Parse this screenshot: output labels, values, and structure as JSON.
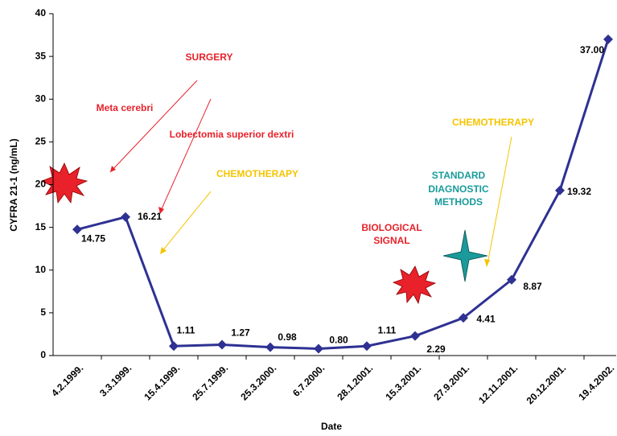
{
  "chart_data": {
    "type": "line",
    "y_label": "CYFRA 21-1 (ng/mL)",
    "x_label": "Date",
    "categories": [
      "4.2.1999.",
      "3.3.1999.",
      "15.4.1999.",
      "25.7.1999.",
      "25.3.2000.",
      "6.7.2000.",
      "28.1.2001.",
      "15.3.2001.",
      "27.9.2001.",
      "12.11.2001.",
      "20.12.2001.",
      "19.4.2002."
    ],
    "series": [
      {
        "color": "#2e3192",
        "values": [
          14.75,
          16.21,
          1.11,
          1.27,
          0.98,
          0.8,
          1.11,
          2.29,
          4.41,
          8.87,
          19.32,
          37.0
        ],
        "value_labels": [
          "14.75",
          "16.21",
          "1.11",
          "1.27",
          "0.98",
          "0.80",
          "1.11",
          "2.29",
          "4.41",
          "8.87",
          "19.32",
          "37.00"
        ]
      }
    ],
    "ylim": [
      0,
      40
    ],
    "yticks": [
      0,
      5,
      10,
      15,
      20,
      25,
      30,
      35,
      40
    ],
    "annotations": [
      "SURGERY",
      "Meta cerebri",
      "Lobectomia superior dextri",
      "CHEMOTHERAPY",
      "CHEMOTHERAPY",
      "STANDARD",
      "DIAGNOSTIC",
      "METHODS",
      "BIOLOGICAL",
      "SIGNAL"
    ]
  }
}
